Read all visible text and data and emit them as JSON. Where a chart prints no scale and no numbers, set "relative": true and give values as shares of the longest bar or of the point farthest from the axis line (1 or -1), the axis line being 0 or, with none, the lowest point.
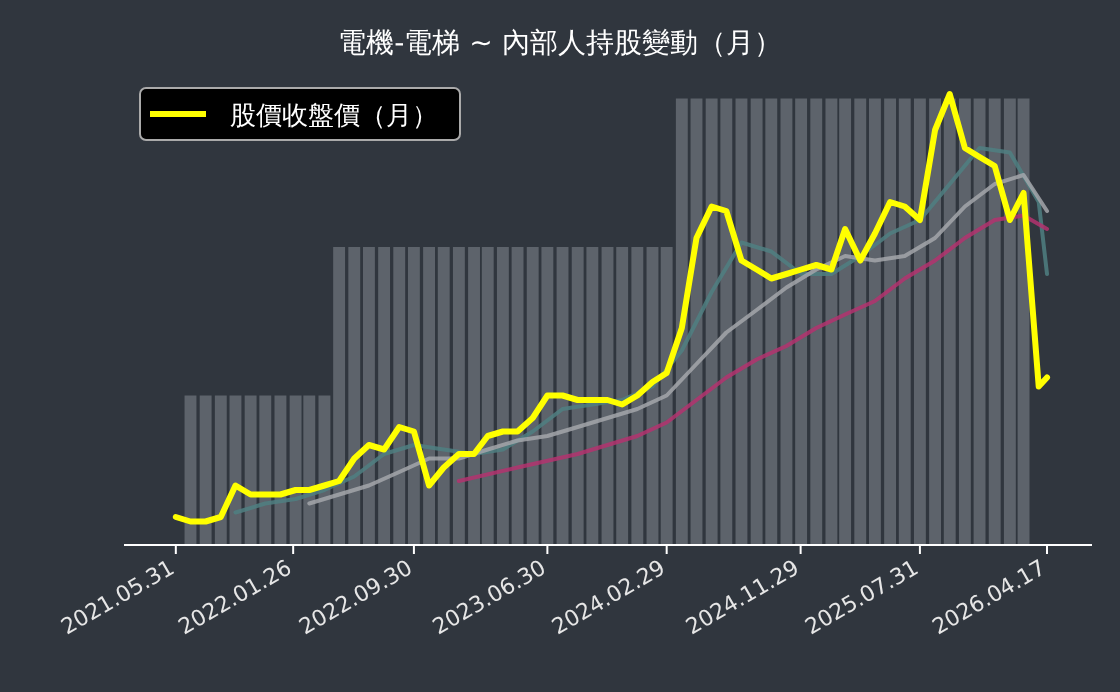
{
  "chart_data": {
    "type": "line",
    "title": "電機-電梯 ~ 內部人持股變動（月）",
    "relative": true,
    "legend": "top left",
    "x": [
      "2021-05-31",
      "2021-06-30",
      "2021-07-31",
      "2021-08-31",
      "2021-09-30",
      "2021-10-31",
      "2021-11-30",
      "2021-12-31",
      "2022-01-31",
      "2022-02-28",
      "2022-03-31",
      "2022-04-30",
      "2022-05-31",
      "2022-06-30",
      "2022-07-31",
      "2022-08-31",
      "2022-09-30",
      "2022-10-31",
      "2022-11-30",
      "2022-12-31",
      "2023-01-31",
      "2023-02-28",
      "2023-03-31",
      "2023-04-30",
      "2023-05-31",
      "2023-06-30",
      "2023-07-31",
      "2023-08-31",
      "2023-09-30",
      "2023-10-31",
      "2023-11-30",
      "2023-12-31",
      "2024-01-31",
      "2024-02-29",
      "2024-03-31",
      "2024-04-30",
      "2024-05-31",
      "2024-06-30",
      "2024-07-31",
      "2024-08-31",
      "2024-09-30",
      "2024-10-31",
      "2024-11-30",
      "2024-12-31",
      "2025-01-31",
      "2025-02-28",
      "2025-03-31",
      "2025-04-30",
      "2025-05-31",
      "2025-06-30",
      "2025-07-31",
      "2025-08-31",
      "2025-09-30",
      "2025-10-31",
      "2025-11-30",
      "2025-12-31",
      "2026-01-31",
      "2026-02-28",
      "2026-03-31",
      "2026-04-17"
    ],
    "xlim": [
      "2021-02-14",
      "2026-07-18"
    ],
    "xticks": [
      {
        "value": "2021-05-31",
        "label": "2021.05.31"
      },
      {
        "value": "2022-01-26",
        "label": "2022.01.26"
      },
      {
        "value": "2022-09-30",
        "label": "2022.09.30"
      },
      {
        "value": "2023-06-30",
        "label": "2023.06.30"
      },
      {
        "value": "2024-02-29",
        "label": "2024.02.29"
      },
      {
        "value": "2024-11-29",
        "label": "2024.11.29"
      },
      {
        "value": "2025-07-31",
        "label": "2025.07.31"
      },
      {
        "value": "2026-04-17",
        "label": "2026.04.17"
      }
    ],
    "series": [
      {
        "type": "bar",
        "color": "#5d636b",
        "x": [
          "2021-06-30",
          "2021-07-31",
          "2021-08-31",
          "2021-09-30",
          "2021-10-31",
          "2021-11-30",
          "2021-12-31",
          "2022-01-31",
          "2022-02-28",
          "2022-03-31",
          "2022-04-30",
          "2022-05-31",
          "2022-06-30",
          "2022-07-31",
          "2022-08-31",
          "2022-09-30",
          "2022-10-31",
          "2022-11-30",
          "2022-12-31",
          "2023-01-31",
          "2023-02-28",
          "2023-03-31",
          "2023-04-30",
          "2023-05-31",
          "2023-06-30",
          "2023-07-31",
          "2023-08-31",
          "2023-09-30",
          "2023-10-31",
          "2023-11-30",
          "2023-12-31",
          "2024-01-31",
          "2024-02-29",
          "2024-03-31",
          "2024-04-30",
          "2024-05-31",
          "2024-06-30",
          "2024-07-31",
          "2024-08-31",
          "2024-09-30",
          "2024-10-31",
          "2024-11-30",
          "2024-12-31",
          "2025-01-31",
          "2025-02-28",
          "2025-03-31",
          "2025-04-30",
          "2025-05-31",
          "2025-06-30",
          "2025-07-31",
          "2025-08-31",
          "2025-09-30",
          "2025-10-31",
          "2025-11-30",
          "2025-12-31",
          "2026-01-31",
          "2026-02-28"
        ],
        "values": [
          0.33,
          0.33,
          0.33,
          0.33,
          0.33,
          0.33,
          0.33,
          0.33,
          0.33,
          0.33,
          0.66,
          0.66,
          0.66,
          0.66,
          0.66,
          0.66,
          0.66,
          0.66,
          0.66,
          0.66,
          0.66,
          0.66,
          0.66,
          0.66,
          0.66,
          0.66,
          0.66,
          0.66,
          0.66,
          0.66,
          0.66,
          0.66,
          0.66,
          0.99,
          0.99,
          0.99,
          0.99,
          0.99,
          0.99,
          0.99,
          0.99,
          0.99,
          0.99,
          0.99,
          0.99,
          0.99,
          0.99,
          0.99,
          0.99,
          0.99,
          0.99,
          0.99,
          0.99,
          0.99,
          0.99,
          0.99,
          0.99
        ]
      },
      {
        "type": "line",
        "color": "#4f7f81",
        "x": [
          "2021-09-30",
          "2021-11-30",
          "2022-01-31",
          "2022-03-31",
          "2022-05-31",
          "2022-07-31",
          "2022-09-30",
          "2022-11-30",
          "2023-01-31",
          "2023-03-31",
          "2023-05-31",
          "2023-07-31",
          "2023-09-30",
          "2023-11-30",
          "2024-01-31",
          "2024-03-31",
          "2024-05-31",
          "2024-07-31",
          "2024-09-30",
          "2024-11-30",
          "2025-01-31",
          "2025-03-31",
          "2025-05-31",
          "2025-07-31",
          "2025-09-30",
          "2025-11-30",
          "2026-01-31",
          "2026-03-31",
          "2026-04-17"
        ],
        "values": [
          0.07,
          0.09,
          0.1,
          0.12,
          0.15,
          0.2,
          0.22,
          0.21,
          0.2,
          0.21,
          0.25,
          0.3,
          0.31,
          0.32,
          0.35,
          0.43,
          0.56,
          0.67,
          0.65,
          0.6,
          0.6,
          0.64,
          0.69,
          0.72,
          0.8,
          0.88,
          0.87,
          0.76,
          0.6
        ]
      },
      {
        "type": "line",
        "color": "#a3a6aa",
        "x": [
          "2022-02-28",
          "2022-04-30",
          "2022-06-30",
          "2022-08-31",
          "2022-10-31",
          "2022-12-31",
          "2023-02-28",
          "2023-04-30",
          "2023-06-30",
          "2023-08-31",
          "2023-10-31",
          "2023-12-31",
          "2024-02-29",
          "2024-04-30",
          "2024-06-30",
          "2024-08-31",
          "2024-10-31",
          "2024-12-31",
          "2025-02-28",
          "2025-04-30",
          "2025-06-30",
          "2025-08-31",
          "2025-10-31",
          "2025-12-31",
          "2026-02-28",
          "2026-04-17"
        ],
        "values": [
          0.09,
          0.11,
          0.13,
          0.16,
          0.19,
          0.19,
          0.21,
          0.23,
          0.24,
          0.26,
          0.28,
          0.3,
          0.33,
          0.4,
          0.47,
          0.52,
          0.57,
          0.61,
          0.64,
          0.63,
          0.64,
          0.68,
          0.75,
          0.8,
          0.82,
          0.74
        ]
      },
      {
        "type": "line",
        "color": "#b3326f",
        "x": [
          "2022-12-31",
          "2023-04-30",
          "2023-08-31",
          "2023-12-31",
          "2024-02-29",
          "2024-04-30",
          "2024-06-30",
          "2024-08-31",
          "2024-10-31",
          "2024-12-31",
          "2025-02-28",
          "2025-04-30",
          "2025-06-30",
          "2025-08-31",
          "2025-10-31",
          "2025-12-31",
          "2026-02-28",
          "2026-04-17"
        ],
        "values": [
          0.14,
          0.17,
          0.2,
          0.24,
          0.27,
          0.32,
          0.37,
          0.41,
          0.44,
          0.48,
          0.51,
          0.54,
          0.59,
          0.63,
          0.68,
          0.72,
          0.73,
          0.7
        ]
      },
      {
        "name": "股價收盤價（月）",
        "color": "#ffff00",
        "values": [
          0.06,
          0.05,
          0.05,
          0.06,
          0.13,
          0.11,
          0.11,
          0.11,
          0.12,
          0.12,
          0.13,
          0.14,
          0.19,
          0.22,
          0.21,
          0.26,
          0.25,
          0.13,
          0.17,
          0.2,
          0.2,
          0.24,
          0.25,
          0.25,
          0.28,
          0.33,
          0.33,
          0.32,
          0.32,
          0.32,
          0.31,
          0.33,
          0.36,
          0.38,
          0.48,
          0.68,
          0.75,
          0.74,
          0.63,
          0.61,
          0.59,
          0.6,
          0.61,
          0.62,
          0.61,
          0.7,
          0.63,
          0.69,
          0.76,
          0.75,
          0.72,
          0.92,
          1.0,
          0.88,
          0.86,
          0.84,
          0.72,
          0.78,
          0.35,
          0.37
        ]
      }
    ]
  }
}
